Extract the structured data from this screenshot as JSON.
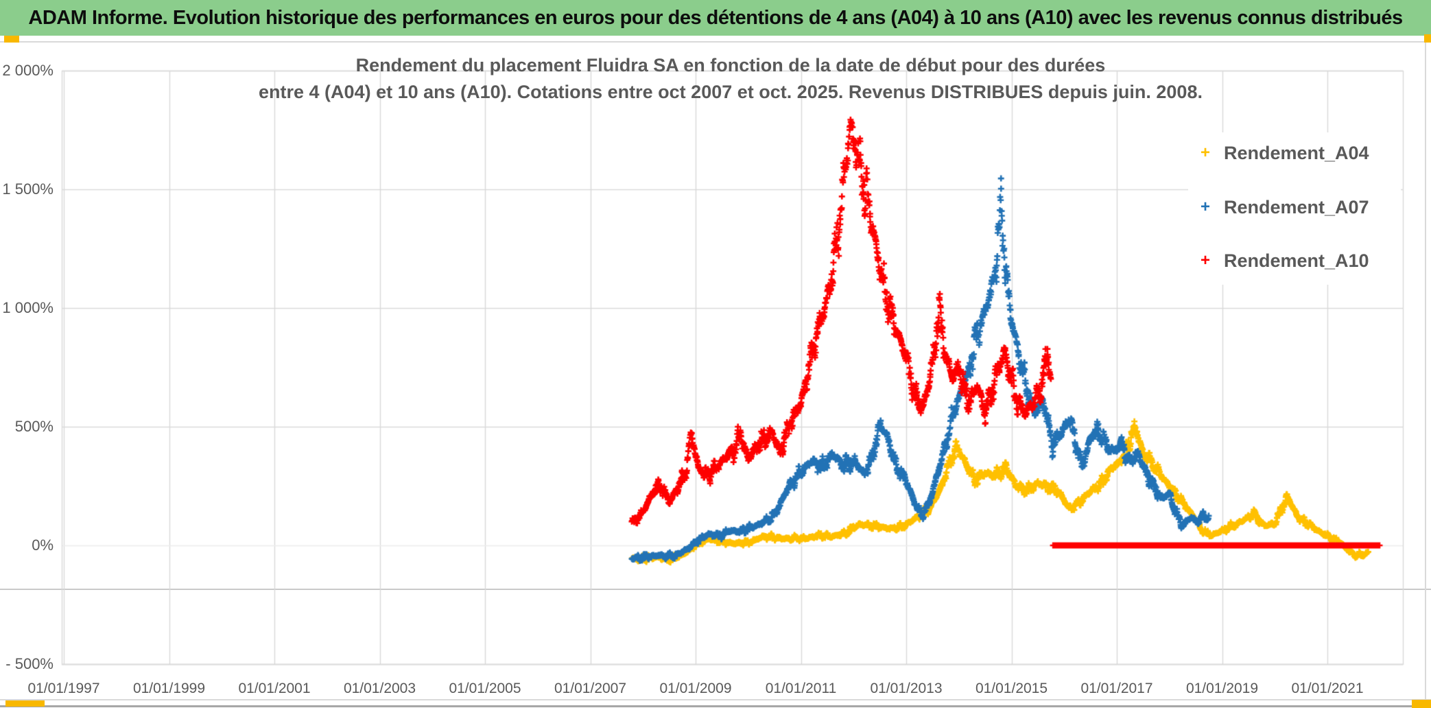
{
  "banner": {
    "text": "ADAM Informe. Evolution historique des performances en euros pour des détentions de 4 ans (A04) à 10 ans (A10) avec les revenus connus distribués",
    "bg_color": "#8BCD8C"
  },
  "colors": {
    "gold": "#FFC000",
    "blue": "#2272B5",
    "red": "#FE0000",
    "grid": "#D9D9D9",
    "axis_text": "#595959",
    "title_text": "#595959"
  },
  "chart_data": {
    "type": "scatter",
    "marker": "plus",
    "title_line1": "Rendement du placement Fluidra SA en fonction de la date de début pour des durées",
    "title_line2": "entre 4 (A04) et 10 ans (A10). Cotations entre oct 2007 et oct. 2025. Revenus DISTRIBUES depuis juin. 2008.",
    "xlabel": "",
    "ylabel": "",
    "grid": true,
    "legend_position": "right-inside",
    "x_tick_labels": [
      "01/01/1997",
      "01/01/1999",
      "01/01/2001",
      "01/01/2003",
      "01/01/2005",
      "01/01/2007",
      "01/01/2009",
      "01/01/2011",
      "01/01/2013",
      "01/01/2015",
      "01/01/2017",
      "01/01/2019",
      "01/01/2021"
    ],
    "x_tick_years": [
      1997,
      1999,
      2001,
      2003,
      2005,
      2007,
      2009,
      2011,
      2013,
      2015,
      2017,
      2019,
      2021
    ],
    "y_tick_labels": [
      "2 000%",
      "1 500%",
      "1 000%",
      "500%",
      "0%",
      "- 500%"
    ],
    "y_tick_values": [
      2000,
      1500,
      1000,
      500,
      0,
      -500
    ],
    "xlim_years": [
      1997.0,
      2022.45
    ],
    "ylim_percent": [
      -500,
      2000
    ],
    "series": [
      {
        "name": "Rendement_A04",
        "color": "#FFC000",
        "unit": "percent_return_vs_start_date",
        "points_year_pct": [
          [
            2007.79,
            -55
          ],
          [
            2008.0,
            -58
          ],
          [
            2008.25,
            -48
          ],
          [
            2008.5,
            -60
          ],
          [
            2008.75,
            -40
          ],
          [
            2009.0,
            0
          ],
          [
            2009.25,
            28
          ],
          [
            2009.5,
            15
          ],
          [
            2009.75,
            8
          ],
          [
            2010.0,
            12
          ],
          [
            2010.3,
            38
          ],
          [
            2010.55,
            30
          ],
          [
            2010.8,
            28
          ],
          [
            2011.1,
            30
          ],
          [
            2011.35,
            42
          ],
          [
            2011.6,
            38
          ],
          [
            2011.85,
            52
          ],
          [
            2012.1,
            88
          ],
          [
            2012.4,
            82
          ],
          [
            2012.7,
            70
          ],
          [
            2012.95,
            80
          ],
          [
            2013.2,
            118
          ],
          [
            2013.45,
            155
          ],
          [
            2013.65,
            240
          ],
          [
            2013.82,
            340
          ],
          [
            2013.95,
            415
          ],
          [
            2014.1,
            360
          ],
          [
            2014.3,
            275
          ],
          [
            2014.5,
            305
          ],
          [
            2014.7,
            295
          ],
          [
            2014.9,
            325
          ],
          [
            2015.1,
            248
          ],
          [
            2015.3,
            228
          ],
          [
            2015.5,
            262
          ],
          [
            2015.7,
            248
          ],
          [
            2015.9,
            225
          ],
          [
            2016.1,
            155
          ],
          [
            2016.3,
            185
          ],
          [
            2016.5,
            228
          ],
          [
            2016.7,
            258
          ],
          [
            2016.9,
            325
          ],
          [
            2017.05,
            348
          ],
          [
            2017.2,
            415
          ],
          [
            2017.35,
            500
          ],
          [
            2017.5,
            388
          ],
          [
            2017.7,
            338
          ],
          [
            2017.9,
            278
          ],
          [
            2018.1,
            218
          ],
          [
            2018.3,
            168
          ],
          [
            2018.5,
            108
          ],
          [
            2018.65,
            58
          ],
          [
            2018.8,
            42
          ],
          [
            2019.0,
            62
          ],
          [
            2019.3,
            92
          ],
          [
            2019.6,
            132
          ],
          [
            2019.8,
            82
          ],
          [
            2020.0,
            92
          ],
          [
            2020.24,
            205
          ],
          [
            2020.45,
            115
          ],
          [
            2020.65,
            88
          ],
          [
            2020.85,
            58
          ],
          [
            2021.05,
            35
          ],
          [
            2021.25,
            12
          ],
          [
            2021.4,
            -22
          ],
          [
            2021.55,
            -45
          ],
          [
            2021.7,
            -38
          ],
          [
            2021.78,
            -28
          ]
        ]
      },
      {
        "name": "Rendement_A07",
        "color": "#2272B5",
        "unit": "percent_return_vs_start_date",
        "points_year_pct": [
          [
            2007.79,
            -55
          ],
          [
            2008.0,
            -50
          ],
          [
            2008.3,
            -42
          ],
          [
            2008.6,
            -45
          ],
          [
            2008.85,
            -15
          ],
          [
            2009.05,
            22
          ],
          [
            2009.25,
            48
          ],
          [
            2009.45,
            40
          ],
          [
            2009.65,
            62
          ],
          [
            2009.85,
            58
          ],
          [
            2010.05,
            75
          ],
          [
            2010.25,
            92
          ],
          [
            2010.5,
            128
          ],
          [
            2010.75,
            240
          ],
          [
            2011.0,
            308
          ],
          [
            2011.2,
            355
          ],
          [
            2011.4,
            328
          ],
          [
            2011.6,
            385
          ],
          [
            2011.8,
            338
          ],
          [
            2012.0,
            358
          ],
          [
            2012.2,
            302
          ],
          [
            2012.35,
            368
          ],
          [
            2012.5,
            515
          ],
          [
            2012.65,
            455
          ],
          [
            2012.8,
            338
          ],
          [
            2013.0,
            272
          ],
          [
            2013.15,
            185
          ],
          [
            2013.3,
            122
          ],
          [
            2013.45,
            188
          ],
          [
            2013.6,
            305
          ],
          [
            2013.75,
            425
          ],
          [
            2013.9,
            565
          ],
          [
            2014.05,
            648
          ],
          [
            2014.2,
            745
          ],
          [
            2014.35,
            895
          ],
          [
            2014.5,
            985
          ],
          [
            2014.62,
            1080
          ],
          [
            2014.72,
            1220
          ],
          [
            2014.8,
            1430
          ],
          [
            2014.88,
            1180
          ],
          [
            2015.0,
            945
          ],
          [
            2015.15,
            795
          ],
          [
            2015.3,
            648
          ],
          [
            2015.45,
            555
          ],
          [
            2015.6,
            615
          ],
          [
            2015.78,
            418
          ],
          [
            2015.95,
            478
          ],
          [
            2016.1,
            535
          ],
          [
            2016.25,
            415
          ],
          [
            2016.35,
            328
          ],
          [
            2016.5,
            455
          ],
          [
            2016.65,
            488
          ],
          [
            2016.8,
            418
          ],
          [
            2016.95,
            398
          ],
          [
            2017.1,
            428
          ],
          [
            2017.25,
            348
          ],
          [
            2017.4,
            388
          ],
          [
            2017.55,
            308
          ],
          [
            2017.7,
            248
          ],
          [
            2017.85,
            198
          ],
          [
            2018.0,
            218
          ],
          [
            2018.1,
            148
          ],
          [
            2018.25,
            82
          ],
          [
            2018.4,
            118
          ],
          [
            2018.55,
            98
          ],
          [
            2018.65,
            128
          ],
          [
            2018.75,
            108
          ]
        ]
      },
      {
        "name": "Rendement_A10",
        "color": "#FE0000",
        "unit": "percent_return_vs_start_date",
        "points_year_pct": [
          [
            2007.79,
            88
          ],
          [
            2008.0,
            140
          ],
          [
            2008.2,
            228
          ],
          [
            2008.35,
            252
          ],
          [
            2008.5,
            182
          ],
          [
            2008.65,
            238
          ],
          [
            2008.8,
            298
          ],
          [
            2008.92,
            470
          ],
          [
            2009.05,
            330
          ],
          [
            2009.2,
            292
          ],
          [
            2009.4,
            328
          ],
          [
            2009.55,
            368
          ],
          [
            2009.72,
            398
          ],
          [
            2009.85,
            470
          ],
          [
            2010.0,
            362
          ],
          [
            2010.2,
            428
          ],
          [
            2010.45,
            478
          ],
          [
            2010.6,
            392
          ],
          [
            2010.8,
            518
          ],
          [
            2011.0,
            598
          ],
          [
            2011.15,
            748
          ],
          [
            2011.3,
            895
          ],
          [
            2011.45,
            995
          ],
          [
            2011.6,
            1145
          ],
          [
            2011.75,
            1395
          ],
          [
            2011.85,
            1595
          ],
          [
            2011.94,
            1775
          ],
          [
            2012.05,
            1680
          ],
          [
            2012.15,
            1560
          ],
          [
            2012.3,
            1420
          ],
          [
            2012.45,
            1230
          ],
          [
            2012.6,
            1065
          ],
          [
            2012.75,
            945
          ],
          [
            2012.9,
            860
          ],
          [
            2013.0,
            795
          ],
          [
            2013.15,
            645
          ],
          [
            2013.3,
            575
          ],
          [
            2013.45,
            695
          ],
          [
            2013.63,
            995
          ],
          [
            2013.75,
            795
          ],
          [
            2013.9,
            698
          ],
          [
            2014.0,
            760
          ],
          [
            2014.1,
            648
          ],
          [
            2014.2,
            598
          ],
          [
            2014.35,
            675
          ],
          [
            2014.5,
            558
          ],
          [
            2014.62,
            645
          ],
          [
            2014.75,
            742
          ],
          [
            2014.87,
            818
          ],
          [
            2015.0,
            695
          ],
          [
            2015.1,
            618
          ],
          [
            2015.25,
            558
          ],
          [
            2015.4,
            598
          ],
          [
            2015.55,
            648
          ],
          [
            2015.68,
            815
          ],
          [
            2015.75,
            698
          ]
        ],
        "zero_value_segment_years": [
          2015.79,
          2022.0
        ]
      }
    ],
    "legend": [
      {
        "label": "Rendement_A04",
        "color": "#FFC000"
      },
      {
        "label": "Rendement_A07",
        "color": "#2272B5"
      },
      {
        "label": "Rendement_A10",
        "color": "#FE0000"
      }
    ]
  }
}
